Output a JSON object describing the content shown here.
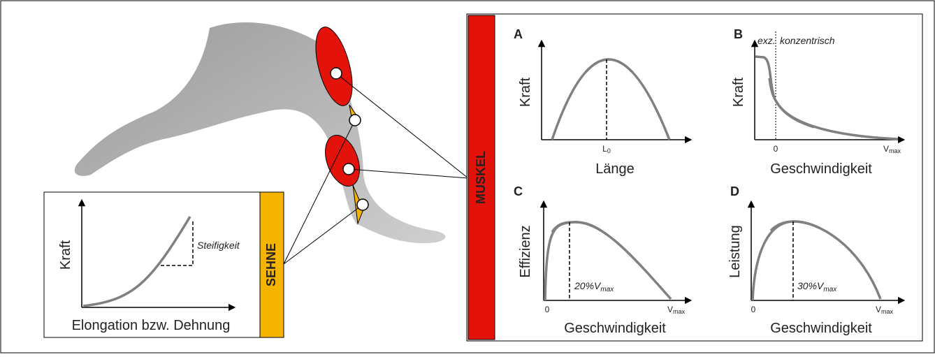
{
  "muscle": {
    "label": "MUSKEL",
    "panels": [
      {
        "letter": "A",
        "y_label": "Kraft",
        "x_label": "Länge",
        "marker": {
          "main": "L",
          "sub": "0"
        }
      },
      {
        "letter": "B",
        "y_label": "Kraft",
        "x_label": "Geschwindigkeit",
        "left_region": "exz.",
        "right_region": "konzentrisch",
        "origin": "0",
        "end": {
          "main": "V",
          "sub": "max"
        }
      },
      {
        "letter": "C",
        "y_label": "Effizienz",
        "x_label": "Geschwindigkeit",
        "origin": "0",
        "end": {
          "main": "V",
          "sub": "max"
        },
        "peak": {
          "main": "20%V",
          "sub": "max"
        }
      },
      {
        "letter": "D",
        "y_label": "Leistung",
        "x_label": "Geschwindigkeit",
        "origin": "0",
        "end": {
          "main": "V",
          "sub": "max"
        },
        "peak": {
          "main": "30%V",
          "sub": "max"
        }
      }
    ]
  },
  "tendon": {
    "label": "SEHNE",
    "y_label": "Kraft",
    "x_label": "Elongation bzw. Dehnung",
    "slope_label": "Steifigkeit"
  }
}
